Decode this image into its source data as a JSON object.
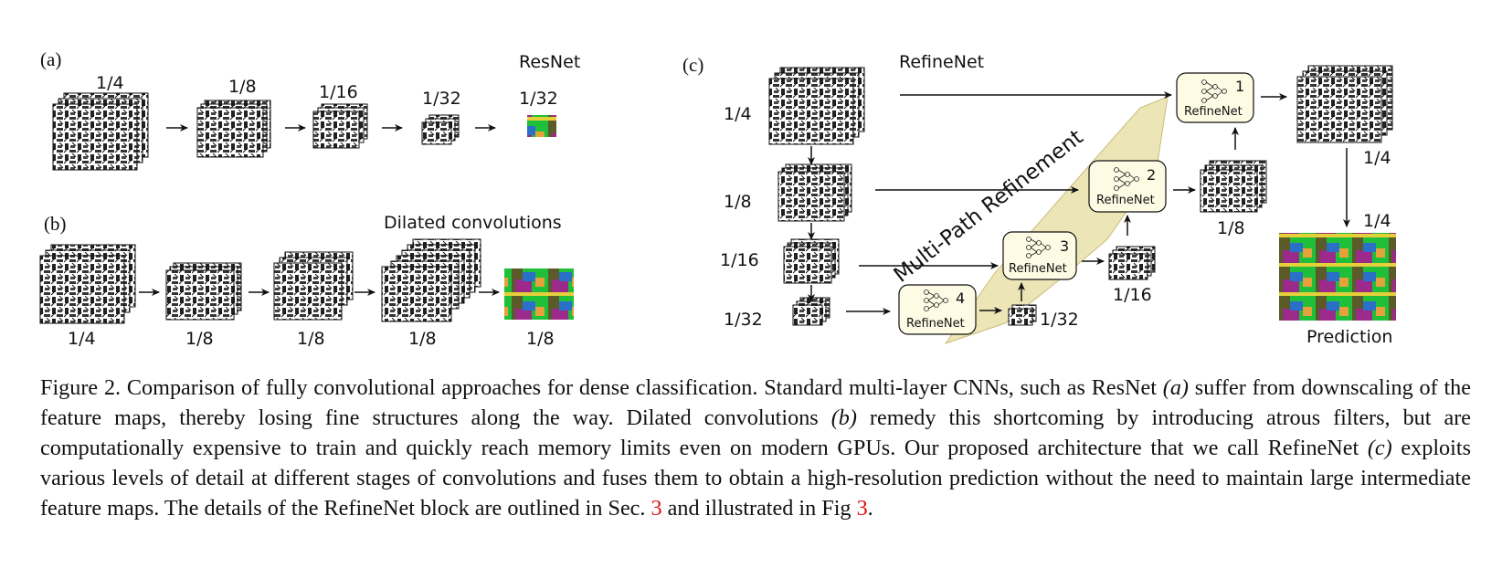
{
  "panels": {
    "a": {
      "tag": "(a)",
      "title": "ResNet",
      "scales": [
        "1/4",
        "1/8",
        "1/16",
        "1/32",
        "1/32"
      ]
    },
    "b": {
      "tag": "(b)",
      "title": "Dilated convolutions",
      "scales": [
        "1/4",
        "1/8",
        "1/8",
        "1/8",
        "1/8"
      ]
    },
    "c": {
      "tag": "(c)",
      "title": "RefineNet",
      "left_scales": [
        "1/4",
        "1/8",
        "1/16",
        "1/32"
      ],
      "block_name": "RefineNet",
      "block_numbers": [
        "1",
        "2",
        "3",
        "4"
      ],
      "out_scales": [
        "1/4",
        "1/8",
        "1/16",
        "1/32"
      ],
      "final_scale": "1/4",
      "prediction_label": "Prediction",
      "refinement_label": "Multi-Path Refinement"
    }
  },
  "caption": {
    "s1": "Figure 2. Comparison of fully convolutional approaches for dense classification.  Standard multi-layer CNNs, such as ResNet ",
    "a": "(a)",
    "s2": " suffer from downscaling of the feature maps, thereby losing fine structures along the way.  Dilated convolutions ",
    "b": "(b)",
    "s3": " remedy this shortcoming by introducing atrous filters, but are computationally expensive to train and quickly reach memory limits even on modern GPUs.  Our proposed architecture that we call RefineNet ",
    "c": "(c)",
    "s4": " exploits various levels of detail at different stages of convolutions and fuses them to obtain a high-resolution prediction without the need to maintain large intermediate feature maps. The details of the RefineNet block are outlined in Sec. ",
    "ref1": "3",
    "s5": " and illustrated in Fig ",
    "ref2": "3",
    "s6": "."
  },
  "colors": {
    "block_fill": "#fdfbe4",
    "refinement_fill": "#ece5b6",
    "reference": "#e01010"
  }
}
